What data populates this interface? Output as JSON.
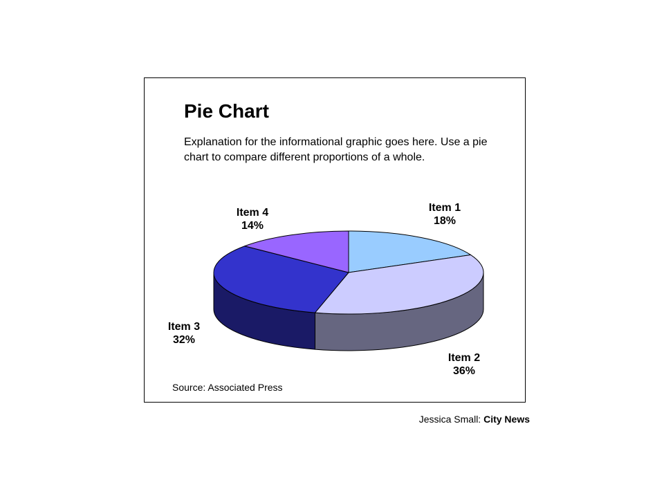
{
  "chart_data": {
    "type": "pie",
    "title": "Pie Chart",
    "subtitle": "Explanation for the informational graphic goes here. Use a pie chart to compare different proportions of a whole.",
    "source": "Source: Associated Press",
    "style": "3d",
    "slices": [
      {
        "label": "Item 1",
        "value": 18,
        "value_label": "18%",
        "color": "#99CCFF",
        "side_color": "#7399BF"
      },
      {
        "label": "Item 2",
        "value": 36,
        "value_label": "36%",
        "color": "#CCCCFF",
        "side_color": "#666680"
      },
      {
        "label": "Item 3",
        "value": 32,
        "value_label": "32%",
        "color": "#3333CC",
        "side_color": "#1A1A66"
      },
      {
        "label": "Item 4",
        "value": 14,
        "value_label": "14%",
        "color": "#9966FF",
        "side_color": "#734CBF"
      }
    ]
  },
  "byline": {
    "author": "Jessica Small:",
    "organization": "City News"
  }
}
